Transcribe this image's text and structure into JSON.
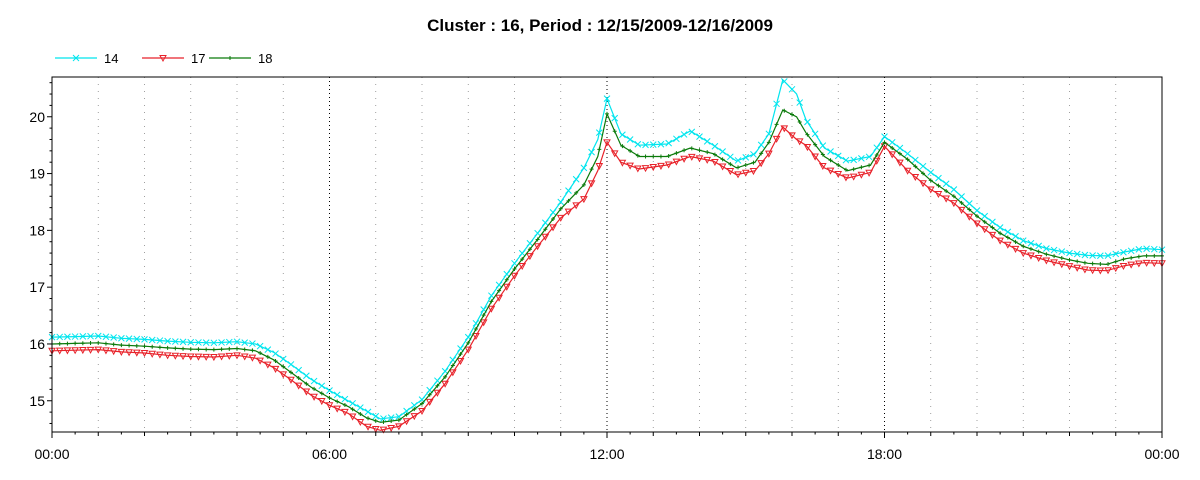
{
  "chart_data": {
    "type": "line",
    "title": "Cluster : 16, Period : 12/15/2009-12/16/2009",
    "xlabel": "",
    "ylabel": "",
    "x_ticks": [
      "00:00",
      "06:00",
      "12:00",
      "18:00",
      "00:00"
    ],
    "x_range_hours": [
      0,
      24
    ],
    "y_ticks": [
      15,
      16,
      17,
      18,
      19,
      20
    ],
    "ylim": [
      14.45,
      20.7
    ],
    "grid": "vertical dotted at 06:00, 12:00, 18:00",
    "legend": {
      "placement": "top-left",
      "entries": [
        "14",
        "17",
        "18"
      ]
    },
    "series": [
      {
        "name": "14",
        "color": "#00e5ee",
        "marker": "x",
        "points": [
          [
            0,
            16.12
          ],
          [
            0.5,
            16.13
          ],
          [
            1,
            16.14
          ],
          [
            1.5,
            16.1
          ],
          [
            2,
            16.08
          ],
          [
            2.5,
            16.05
          ],
          [
            3,
            16.03
          ],
          [
            3.5,
            16.02
          ],
          [
            4,
            16.04
          ],
          [
            4.4,
            16.0
          ],
          [
            4.8,
            15.85
          ],
          [
            5.2,
            15.62
          ],
          [
            5.6,
            15.38
          ],
          [
            6,
            15.18
          ],
          [
            6.4,
            15.0
          ],
          [
            6.8,
            14.82
          ],
          [
            7.1,
            14.68
          ],
          [
            7.5,
            14.72
          ],
          [
            8,
            15.02
          ],
          [
            8.5,
            15.52
          ],
          [
            9,
            16.12
          ],
          [
            9.5,
            16.85
          ],
          [
            10,
            17.42
          ],
          [
            10.5,
            17.95
          ],
          [
            11,
            18.5
          ],
          [
            11.5,
            19.1
          ],
          [
            11.8,
            19.6
          ],
          [
            12,
            20.32
          ],
          [
            12.3,
            19.7
          ],
          [
            12.7,
            19.5
          ],
          [
            13.3,
            19.52
          ],
          [
            13.8,
            19.75
          ],
          [
            14.3,
            19.5
          ],
          [
            14.8,
            19.22
          ],
          [
            15.2,
            19.35
          ],
          [
            15.5,
            19.7
          ],
          [
            15.8,
            20.65
          ],
          [
            16.1,
            20.4
          ],
          [
            16.3,
            19.95
          ],
          [
            16.7,
            19.45
          ],
          [
            17.2,
            19.22
          ],
          [
            17.7,
            19.3
          ],
          [
            18,
            19.65
          ],
          [
            18.5,
            19.35
          ],
          [
            19,
            19.02
          ],
          [
            19.5,
            18.72
          ],
          [
            20,
            18.35
          ],
          [
            20.5,
            18.05
          ],
          [
            21,
            17.82
          ],
          [
            21.5,
            17.68
          ],
          [
            22,
            17.6
          ],
          [
            22.4,
            17.56
          ],
          [
            22.8,
            17.55
          ],
          [
            23.2,
            17.62
          ],
          [
            23.6,
            17.68
          ],
          [
            24,
            17.66
          ]
        ]
      },
      {
        "name": "17",
        "color": "#e8222a",
        "marker": "triangle-down",
        "points": [
          [
            0,
            15.88
          ],
          [
            0.5,
            15.89
          ],
          [
            1,
            15.9
          ],
          [
            1.5,
            15.86
          ],
          [
            2,
            15.84
          ],
          [
            2.5,
            15.8
          ],
          [
            3,
            15.78
          ],
          [
            3.5,
            15.77
          ],
          [
            4,
            15.8
          ],
          [
            4.4,
            15.75
          ],
          [
            4.8,
            15.58
          ],
          [
            5.2,
            15.35
          ],
          [
            5.6,
            15.1
          ],
          [
            6,
            14.92
          ],
          [
            6.4,
            14.78
          ],
          [
            6.8,
            14.55
          ],
          [
            7.1,
            14.48
          ],
          [
            7.5,
            14.55
          ],
          [
            8,
            14.82
          ],
          [
            8.5,
            15.3
          ],
          [
            9,
            15.9
          ],
          [
            9.5,
            16.62
          ],
          [
            10,
            17.2
          ],
          [
            10.5,
            17.72
          ],
          [
            11,
            18.22
          ],
          [
            11.5,
            18.55
          ],
          [
            11.8,
            19.05
          ],
          [
            12,
            19.55
          ],
          [
            12.3,
            19.2
          ],
          [
            12.7,
            19.08
          ],
          [
            13.3,
            19.15
          ],
          [
            13.8,
            19.3
          ],
          [
            14.3,
            19.22
          ],
          [
            14.8,
            18.98
          ],
          [
            15.2,
            19.05
          ],
          [
            15.5,
            19.35
          ],
          [
            15.8,
            19.82
          ],
          [
            16.1,
            19.6
          ],
          [
            16.3,
            19.5
          ],
          [
            16.7,
            19.1
          ],
          [
            17.2,
            18.92
          ],
          [
            17.7,
            19.02
          ],
          [
            18,
            19.48
          ],
          [
            18.5,
            19.05
          ],
          [
            19,
            18.72
          ],
          [
            19.5,
            18.48
          ],
          [
            20,
            18.12
          ],
          [
            20.5,
            17.82
          ],
          [
            21,
            17.6
          ],
          [
            21.5,
            17.47
          ],
          [
            22,
            17.37
          ],
          [
            22.4,
            17.3
          ],
          [
            22.8,
            17.29
          ],
          [
            23.2,
            17.38
          ],
          [
            23.6,
            17.43
          ],
          [
            24,
            17.42
          ]
        ]
      },
      {
        "name": "18",
        "color": "#0a7a0a",
        "marker": "plus",
        "points": [
          [
            0,
            16.0
          ],
          [
            0.5,
            16.01
          ],
          [
            1,
            16.02
          ],
          [
            1.5,
            15.98
          ],
          [
            2,
            15.96
          ],
          [
            2.5,
            15.93
          ],
          [
            3,
            15.91
          ],
          [
            3.5,
            15.9
          ],
          [
            4,
            15.92
          ],
          [
            4.4,
            15.88
          ],
          [
            4.8,
            15.72
          ],
          [
            5.2,
            15.48
          ],
          [
            5.6,
            15.24
          ],
          [
            6,
            15.05
          ],
          [
            6.4,
            14.9
          ],
          [
            6.8,
            14.7
          ],
          [
            7.1,
            14.62
          ],
          [
            7.5,
            14.66
          ],
          [
            8,
            14.95
          ],
          [
            8.5,
            15.42
          ],
          [
            9,
            16.02
          ],
          [
            9.5,
            16.75
          ],
          [
            10,
            17.32
          ],
          [
            10.5,
            17.84
          ],
          [
            11,
            18.38
          ],
          [
            11.5,
            18.8
          ],
          [
            11.8,
            19.3
          ],
          [
            12,
            20.05
          ],
          [
            12.3,
            19.5
          ],
          [
            12.7,
            19.3
          ],
          [
            13.3,
            19.3
          ],
          [
            13.8,
            19.45
          ],
          [
            14.3,
            19.35
          ],
          [
            14.8,
            19.1
          ],
          [
            15.2,
            19.2
          ],
          [
            15.5,
            19.55
          ],
          [
            15.8,
            20.12
          ],
          [
            16.1,
            20.0
          ],
          [
            16.3,
            19.72
          ],
          [
            16.7,
            19.3
          ],
          [
            17.2,
            19.05
          ],
          [
            17.7,
            19.15
          ],
          [
            18,
            19.55
          ],
          [
            18.5,
            19.25
          ],
          [
            19,
            18.88
          ],
          [
            19.5,
            18.6
          ],
          [
            20,
            18.25
          ],
          [
            20.5,
            17.95
          ],
          [
            21,
            17.72
          ],
          [
            21.5,
            17.58
          ],
          [
            22,
            17.48
          ],
          [
            22.4,
            17.42
          ],
          [
            22.8,
            17.4
          ],
          [
            23.2,
            17.5
          ],
          [
            23.6,
            17.55
          ],
          [
            24,
            17.55
          ]
        ]
      }
    ]
  }
}
